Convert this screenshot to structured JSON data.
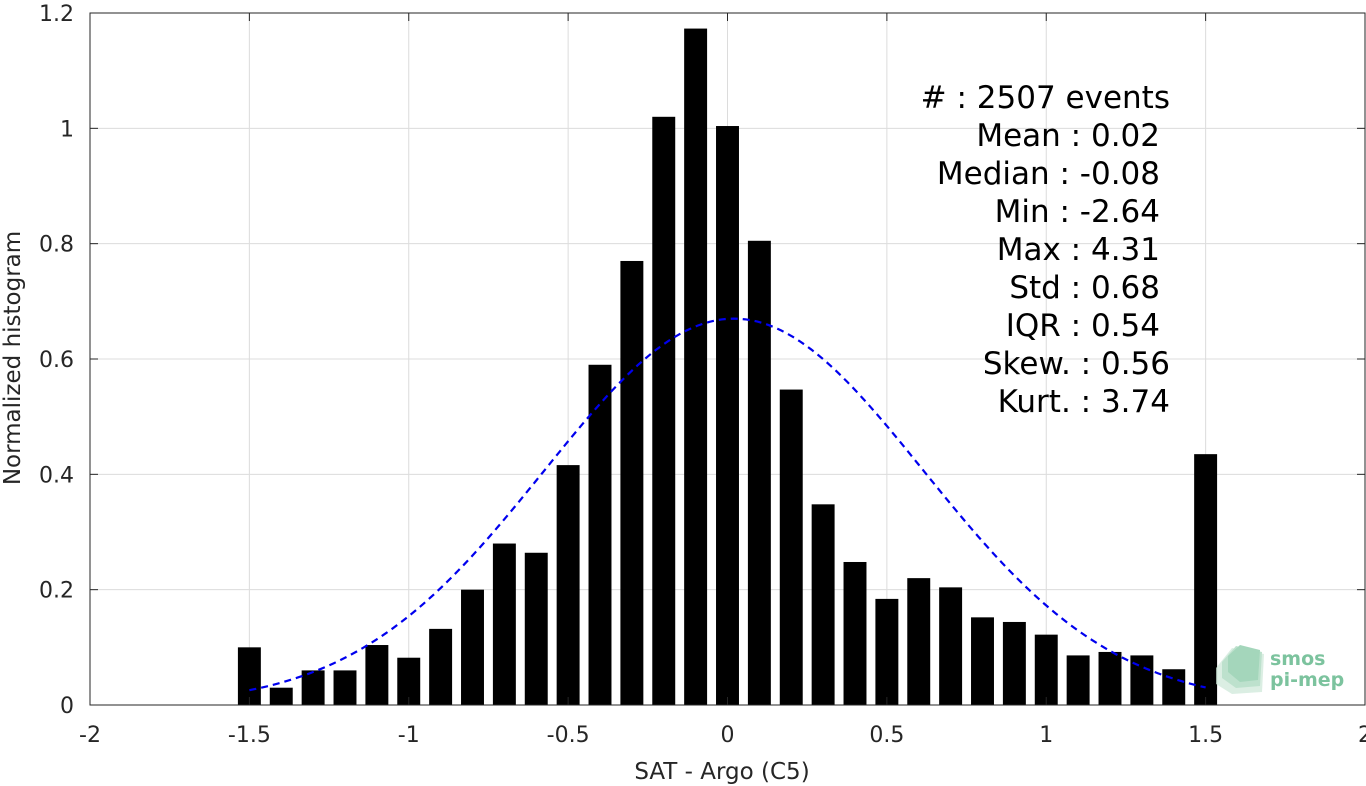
{
  "chart_data": {
    "type": "bar",
    "xlabel": "SAT - Argo (C5)",
    "ylabel": "Normalized histogram",
    "xlim": [
      -2,
      2
    ],
    "ylim": [
      0,
      1.2
    ],
    "x_ticks": [
      "-2",
      "-1.5",
      "-1",
      "-0.5",
      "0",
      "0.5",
      "1",
      "1.5",
      "2"
    ],
    "y_ticks": [
      "0",
      "0.2",
      "0.4",
      "0.6",
      "0.8",
      "1",
      "1.2"
    ],
    "grid": true,
    "bar_color": "#000000",
    "fit_color": "#0000ee",
    "bins": [
      {
        "x": -1.5,
        "y": 0.1
      },
      {
        "x": -1.4,
        "y": 0.03
      },
      {
        "x": -1.3,
        "y": 0.06
      },
      {
        "x": -1.2,
        "y": 0.06
      },
      {
        "x": -1.1,
        "y": 0.104
      },
      {
        "x": -1.0,
        "y": 0.082
      },
      {
        "x": -0.9,
        "y": 0.132
      },
      {
        "x": -0.8,
        "y": 0.2
      },
      {
        "x": -0.7,
        "y": 0.28
      },
      {
        "x": -0.6,
        "y": 0.264
      },
      {
        "x": -0.5,
        "y": 0.416
      },
      {
        "x": -0.4,
        "y": 0.59
      },
      {
        "x": -0.3,
        "y": 0.77
      },
      {
        "x": -0.2,
        "y": 1.02
      },
      {
        "x": -0.1,
        "y": 1.173
      },
      {
        "x": 0.0,
        "y": 1.004
      },
      {
        "x": 0.1,
        "y": 0.805
      },
      {
        "x": 0.2,
        "y": 0.547
      },
      {
        "x": 0.3,
        "y": 0.348
      },
      {
        "x": 0.4,
        "y": 0.248
      },
      {
        "x": 0.5,
        "y": 0.184
      },
      {
        "x": 0.6,
        "y": 0.22
      },
      {
        "x": 0.7,
        "y": 0.204
      },
      {
        "x": 0.8,
        "y": 0.152
      },
      {
        "x": 0.9,
        "y": 0.144
      },
      {
        "x": 1.0,
        "y": 0.122
      },
      {
        "x": 1.1,
        "y": 0.086
      },
      {
        "x": 1.2,
        "y": 0.092
      },
      {
        "x": 1.3,
        "y": 0.086
      },
      {
        "x": 1.4,
        "y": 0.062
      },
      {
        "x": 1.5,
        "y": 0.435
      }
    ],
    "fit_curve": {
      "style": "dashed",
      "type": "gaussian",
      "mean": 0.02,
      "std": 0.595,
      "peak": 0.67,
      "x_range": [
        -1.5,
        1.5
      ]
    },
    "stats_lines": [
      "#  : 2507 events",
      "Mean : 0.02",
      "Median : -0.08",
      "Min : -2.64",
      "Max : 4.31",
      "Std : 0.68",
      "IQR : 0.54",
      "Skew. : 0.56",
      "Kurt. : 3.74"
    ],
    "logo": {
      "line1": "smos",
      "line2": "pi-mep",
      "color": "#7cc39e"
    }
  }
}
